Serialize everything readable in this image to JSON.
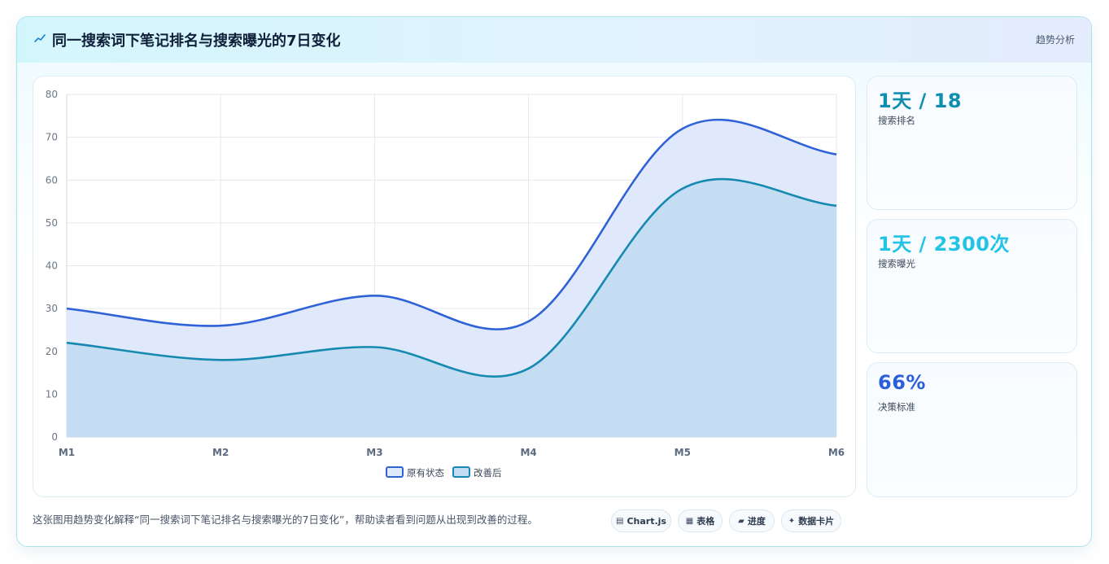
{
  "header": {
    "icon": "chart-line-icon",
    "title": "同一搜索词下笔记排名与搜索曝光的7日变化",
    "tag": "趋势分析"
  },
  "stats": [
    {
      "value": "1天 / 18",
      "label": "搜索排名",
      "color": "#0f8fb0"
    },
    {
      "value": "1天 / 2300次",
      "label": "搜索曝光",
      "color": "#22c3e6"
    },
    {
      "value": "66%",
      "label": "决策标准",
      "color": "#2b5fd9"
    }
  ],
  "footer": {
    "description": "这张图用趋势变化解释“同一搜索词下笔记排名与搜索曝光的7日变化”，帮助读者看到问题从出现到改善的过程。",
    "chips": [
      {
        "icon": "chart-icon",
        "glyph": "▤",
        "label": "Chart.js"
      },
      {
        "icon": "table-icon",
        "glyph": "▦",
        "label": "表格"
      },
      {
        "icon": "progress-icon",
        "glyph": "▰",
        "label": "进度"
      },
      {
        "icon": "sparkle-icon",
        "glyph": "✦",
        "label": "数据卡片"
      }
    ]
  },
  "chart_data": {
    "type": "area",
    "categories": [
      "M1",
      "M2",
      "M3",
      "M4",
      "M5",
      "M6"
    ],
    "series": [
      {
        "name": "原有状态",
        "values": [
          30,
          26,
          33,
          27,
          72,
          66
        ],
        "color": "#2f62d6",
        "fill": "#dfe9fb"
      },
      {
        "name": "改善后",
        "values": [
          22,
          18,
          21,
          16,
          58,
          54
        ],
        "color": "#1689b0",
        "fill": "#c3dcf2"
      }
    ],
    "ylim": [
      0,
      80
    ],
    "yticks": [
      0,
      10,
      20,
      30,
      40,
      50,
      60,
      70,
      80
    ],
    "grid": true,
    "legend": "bottom-center",
    "title": "",
    "xlabel": "",
    "ylabel": ""
  }
}
